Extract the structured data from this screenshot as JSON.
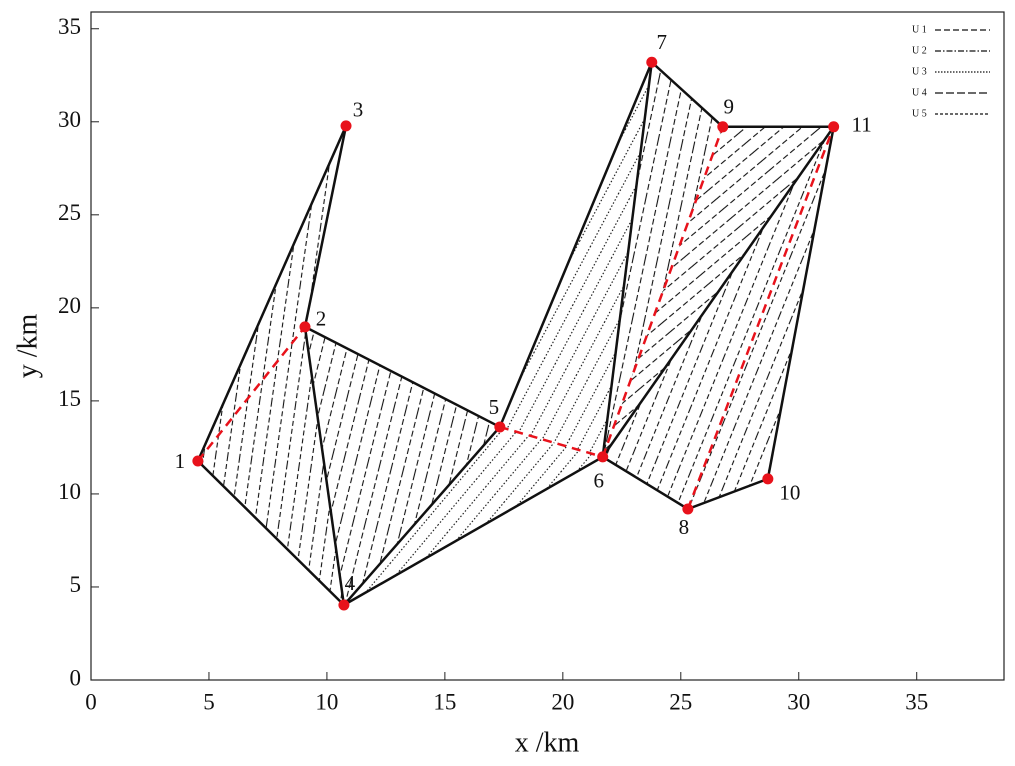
{
  "chart_data": {
    "type": "scatter",
    "x": [
      4.53,
      9.07,
      10.81,
      10.72,
      17.33,
      21.69,
      23.77,
      25.3,
      26.78,
      28.69,
      31.48
    ],
    "y": [
      11.77,
      18.98,
      29.78,
      4.03,
      13.6,
      11.99,
      33.2,
      9.19,
      29.73,
      10.81,
      29.73
    ],
    "labels": [
      "1",
      "2",
      "3",
      "4",
      "5",
      "6",
      "7",
      "8",
      "9",
      "10",
      "11"
    ],
    "color": "#e8121b",
    "xlabel": "x /km",
    "ylabel": "y /km",
    "xlim": [
      0,
      38.7
    ],
    "ylim": [
      0,
      35.9
    ],
    "xticks": [
      0,
      5,
      10,
      15,
      20,
      25,
      30,
      35
    ],
    "yticks": [
      0,
      5,
      10,
      15,
      20,
      25,
      30,
      35
    ],
    "grid": false,
    "legend": {
      "position": "upper right",
      "entries": [
        "U 1",
        "U 2",
        "U 3",
        "U 4",
        "U 5"
      ]
    }
  }
}
